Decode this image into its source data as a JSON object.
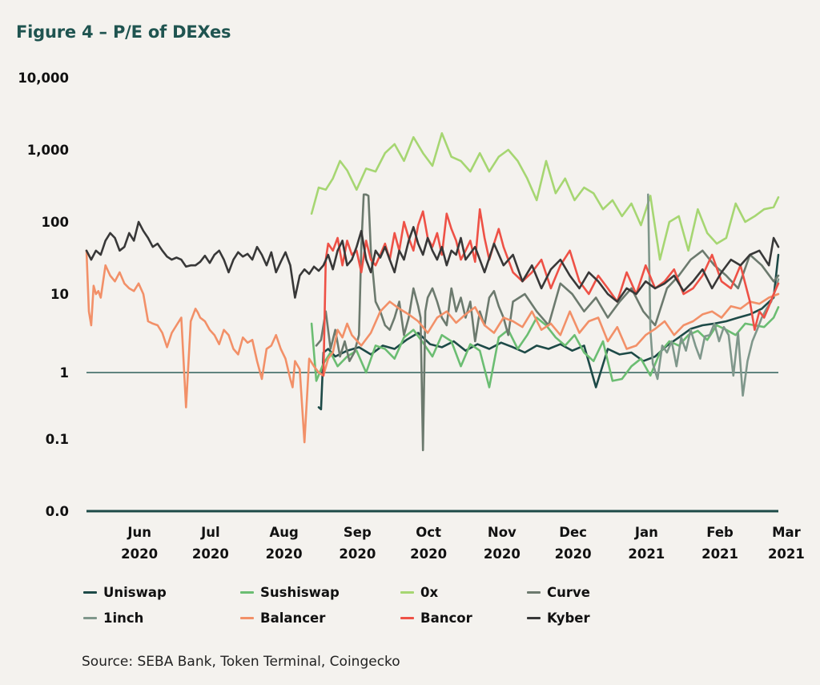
{
  "title": "Figure 4 – P/E of DEXes",
  "source": "Source: SEBA Bank, Token Terminal, Coingecko",
  "chart_data": {
    "type": "line",
    "title": "Figure 4 – P/E of DEXes",
    "xlabel": "",
    "ylabel": "",
    "yscale": "log",
    "ylim": [
      0.01,
      10000
    ],
    "y_ticks": [
      {
        "value": 10000,
        "label": "10,000"
      },
      {
        "value": 1000,
        "label": "1,000"
      },
      {
        "value": 100,
        "label": "100"
      },
      {
        "value": 10,
        "label": "10"
      },
      {
        "value": 1,
        "label": "1"
      },
      {
        "value": 0.1,
        "label": "0.1"
      },
      {
        "value": 0.01,
        "label": "0.0"
      }
    ],
    "x_ticks": [
      {
        "day": 21,
        "month": "Jun",
        "year": "2020"
      },
      {
        "day": 51,
        "month": "Jul",
        "year": "2020"
      },
      {
        "day": 82,
        "month": "Aug",
        "year": "2020"
      },
      {
        "day": 113,
        "month": "Sep",
        "year": "2020"
      },
      {
        "day": 143,
        "month": "Oct",
        "year": "2020"
      },
      {
        "day": 174,
        "month": "Nov",
        "year": "2020"
      },
      {
        "day": 204,
        "month": "Dec",
        "year": "2020"
      },
      {
        "day": 235,
        "month": "Jan",
        "year": "2021"
      },
      {
        "day": 266,
        "month": "Feb",
        "year": "2021"
      },
      {
        "day": 294,
        "month": "Mar",
        "year": "2021"
      }
    ],
    "x_unit": "days since 2020-05-25",
    "xlim": [
      0,
      292
    ],
    "reference_line": 1,
    "grid": false,
    "legend": "bottom",
    "series": [
      {
        "name": "Uniswap",
        "color": "#1d4a47",
        "x": [
          98,
          99,
          100,
          102,
          105,
          110,
          115,
          120,
          125,
          130,
          135,
          140,
          145,
          150,
          155,
          160,
          165,
          170,
          175,
          180,
          185,
          190,
          195,
          200,
          205,
          210,
          215,
          220,
          225,
          230,
          235,
          240,
          245,
          250,
          255,
          260,
          265,
          270,
          275,
          280,
          285,
          290,
          292
        ],
        "y": [
          0.3,
          0.28,
          1.8,
          2.0,
          1.6,
          1.9,
          2.1,
          1.7,
          2.2,
          2.0,
          2.6,
          3.2,
          2.3,
          2.1,
          2.5,
          1.9,
          2.3,
          2.0,
          2.4,
          2.1,
          1.8,
          2.2,
          2.0,
          2.3,
          1.9,
          2.2,
          0.6,
          2.0,
          1.7,
          1.8,
          1.4,
          1.6,
          2.2,
          2.8,
          3.6,
          4.0,
          4.2,
          4.5,
          5.0,
          5.5,
          6.5,
          9.0,
          35
        ]
      },
      {
        "name": "Sushiswap",
        "color": "#6bbd72",
        "x": [
          95,
          97,
          100,
          103,
          106,
          110,
          114,
          118,
          122,
          126,
          130,
          134,
          138,
          142,
          146,
          150,
          154,
          158,
          162,
          166,
          170,
          174,
          178,
          182,
          186,
          190,
          194,
          198,
          202,
          206,
          210,
          214,
          218,
          222,
          226,
          230,
          234,
          238,
          242,
          246,
          250,
          254,
          258,
          262,
          266,
          270,
          274,
          278,
          282,
          286,
          290,
          292
        ],
        "y": [
          4.2,
          0.75,
          1.3,
          1.8,
          1.2,
          1.6,
          1.9,
          1.0,
          2.2,
          2.0,
          1.5,
          2.8,
          3.5,
          2.4,
          1.6,
          3.0,
          2.5,
          1.2,
          2.3,
          1.9,
          0.6,
          2.8,
          3.5,
          2.0,
          3.0,
          5.0,
          4.0,
          2.8,
          2.2,
          3.0,
          1.8,
          1.4,
          2.5,
          0.75,
          0.8,
          1.2,
          1.5,
          0.9,
          1.8,
          2.5,
          2.2,
          3.0,
          3.4,
          2.6,
          4.0,
          3.5,
          3.0,
          4.2,
          4.0,
          3.8,
          5.0,
          6.8
        ]
      },
      {
        "name": "0x",
        "color": "#a6d672",
        "x": [
          95,
          98,
          101,
          104,
          107,
          110,
          114,
          118,
          122,
          126,
          130,
          134,
          138,
          142,
          146,
          150,
          154,
          158,
          162,
          166,
          170,
          174,
          178,
          182,
          186,
          190,
          194,
          198,
          202,
          206,
          210,
          214,
          218,
          222,
          226,
          230,
          234,
          238,
          242,
          246,
          250,
          254,
          258,
          262,
          266,
          270,
          274,
          278,
          282,
          286,
          290,
          292
        ],
        "y": [
          130,
          300,
          280,
          400,
          700,
          520,
          280,
          550,
          500,
          900,
          1200,
          700,
          1500,
          900,
          600,
          1700,
          800,
          700,
          500,
          900,
          500,
          800,
          1000,
          700,
          400,
          200,
          700,
          250,
          400,
          200,
          300,
          250,
          150,
          200,
          120,
          180,
          90,
          230,
          30,
          100,
          120,
          40,
          150,
          70,
          50,
          60,
          180,
          100,
          120,
          150,
          160,
          220
        ]
      },
      {
        "name": "Curve",
        "color": "#6c7a6e",
        "x": [
          97,
          99,
          101,
          103,
          105,
          107,
          109,
          111,
          113,
          115,
          116,
          117,
          118,
          119,
          120,
          122,
          124,
          126,
          128,
          130,
          132,
          134,
          136,
          138,
          140,
          141,
          142,
          143,
          144,
          146,
          148,
          150,
          152,
          154,
          156,
          158,
          160,
          162,
          164,
          166,
          168,
          170,
          172,
          174,
          176,
          178,
          180,
          185,
          190,
          195,
          200,
          205,
          210,
          215,
          220,
          225,
          230,
          235,
          240,
          245,
          250,
          255,
          260,
          265,
          270,
          275,
          280,
          285,
          290,
          292
        ],
        "y": [
          2.2,
          2.6,
          6.0,
          2.0,
          3.5,
          1.6,
          2.5,
          1.4,
          1.8,
          3.0,
          45,
          240,
          240,
          230,
          40,
          8,
          6,
          4,
          3.5,
          5,
          8,
          3,
          5,
          12,
          7,
          5,
          0.07,
          6,
          9,
          12,
          8,
          5,
          4,
          12,
          6,
          9,
          5,
          8,
          2.5,
          6,
          4,
          9,
          11,
          7,
          5,
          3,
          8,
          10,
          6,
          4,
          14,
          10,
          6,
          9,
          5,
          8,
          12,
          6,
          4,
          12,
          18,
          30,
          40,
          25,
          18,
          12,
          35,
          25,
          15,
          18
        ]
      },
      {
        "name": "1inch",
        "color": "#7f978b",
        "x": [
          237,
          238,
          239,
          241,
          243,
          245,
          247,
          249,
          251,
          253,
          255,
          257,
          259,
          261,
          263,
          265,
          267,
          269,
          271,
          273,
          275,
          277,
          279,
          281,
          283,
          285,
          287,
          289,
          291,
          292
        ],
        "y": [
          240,
          3.5,
          1.3,
          0.8,
          2.2,
          1.8,
          2.5,
          1.2,
          2.8,
          1.9,
          3.5,
          2.2,
          1.5,
          2.9,
          3.0,
          4.2,
          2.5,
          3.8,
          3.0,
          0.9,
          3.2,
          0.45,
          1.4,
          2.5,
          3.5,
          5.0,
          6.5,
          8.0,
          12,
          16
        ]
      },
      {
        "name": "Balancer",
        "color": "#f29068",
        "x": [
          0,
          1,
          2,
          3,
          4,
          5,
          6,
          8,
          10,
          12,
          14,
          16,
          18,
          20,
          22,
          24,
          26,
          28,
          30,
          32,
          34,
          36,
          38,
          40,
          42,
          44,
          46,
          47,
          48,
          50,
          52,
          54,
          56,
          58,
          60,
          62,
          64,
          66,
          68,
          70,
          72,
          74,
          76,
          78,
          80,
          82,
          84,
          86,
          87,
          88,
          90,
          92,
          94,
          96,
          98,
          100,
          102,
          104,
          106,
          108,
          110,
          112,
          116,
          120,
          124,
          128,
          132,
          136,
          140,
          144,
          148,
          152,
          156,
          160,
          164,
          168,
          172,
          176,
          180,
          184,
          188,
          192,
          196,
          200,
          204,
          208,
          212,
          216,
          220,
          224,
          228,
          232,
          236,
          240,
          244,
          248,
          252,
          256,
          260,
          264,
          268,
          272,
          276,
          280,
          284,
          288,
          292
        ],
        "y": [
          40,
          6,
          4,
          13,
          10,
          11,
          9,
          25,
          18,
          15,
          20,
          14,
          12,
          11,
          14,
          10,
          4.5,
          4.2,
          4.0,
          3.2,
          2.1,
          3.2,
          4.0,
          5.0,
          0.3,
          4.5,
          6.5,
          5.8,
          5.0,
          4.5,
          3.5,
          3.0,
          2.3,
          3.5,
          3.0,
          2.0,
          1.7,
          2.8,
          2.4,
          2.6,
          1.4,
          0.8,
          2.0,
          2.2,
          3.0,
          2.0,
          1.5,
          0.8,
          0.6,
          1.4,
          1.1,
          0.09,
          1.5,
          1.2,
          1.0,
          0.9,
          1.5,
          1.8,
          3.5,
          2.8,
          4.2,
          3.0,
          2.2,
          3.2,
          6.0,
          8.0,
          6.5,
          5.5,
          4.5,
          3.2,
          5.0,
          6.0,
          4.3,
          5.5,
          6.8,
          4.0,
          3.2,
          5.0,
          4.5,
          3.8,
          6.0,
          3.5,
          4.2,
          3.0,
          6.0,
          3.2,
          4.5,
          5.0,
          2.5,
          3.8,
          2.0,
          2.2,
          3.0,
          3.6,
          4.5,
          3.0,
          4.0,
          4.5,
          5.5,
          6.0,
          5.0,
          7.0,
          6.5,
          8.0,
          7.5,
          9.0,
          10
        ]
      },
      {
        "name": "Bancor",
        "color": "#ee5146",
        "x": [
          100,
          101,
          102,
          104,
          106,
          108,
          110,
          112,
          114,
          116,
          118,
          120,
          122,
          124,
          126,
          128,
          130,
          132,
          134,
          136,
          138,
          140,
          142,
          144,
          146,
          148,
          150,
          152,
          154,
          156,
          158,
          160,
          162,
          164,
          166,
          168,
          170,
          172,
          174,
          176,
          178,
          180,
          184,
          188,
          192,
          196,
          200,
          204,
          208,
          212,
          216,
          220,
          224,
          228,
          232,
          236,
          240,
          244,
          248,
          252,
          256,
          260,
          264,
          268,
          272,
          276,
          280,
          282,
          284,
          286,
          288,
          290,
          292
        ],
        "y": [
          0.9,
          30,
          50,
          40,
          60,
          25,
          55,
          35,
          40,
          20,
          55,
          30,
          25,
          35,
          50,
          30,
          70,
          40,
          100,
          60,
          40,
          90,
          140,
          60,
          45,
          70,
          35,
          130,
          80,
          55,
          30,
          40,
          55,
          28,
          150,
          60,
          30,
          50,
          80,
          45,
          30,
          20,
          15,
          20,
          30,
          12,
          25,
          40,
          15,
          10,
          18,
          12,
          8,
          20,
          10,
          25,
          12,
          15,
          22,
          10,
          12,
          18,
          35,
          15,
          12,
          25,
          8,
          3.5,
          6,
          5,
          7,
          10,
          14
        ]
      },
      {
        "name": "Kyber",
        "color": "#383838",
        "x": [
          0,
          2,
          4,
          6,
          8,
          10,
          12,
          14,
          16,
          18,
          20,
          22,
          24,
          26,
          28,
          30,
          32,
          34,
          36,
          38,
          40,
          42,
          44,
          46,
          48,
          50,
          52,
          54,
          56,
          58,
          60,
          62,
          64,
          66,
          68,
          70,
          72,
          74,
          76,
          78,
          80,
          82,
          84,
          86,
          88,
          90,
          92,
          94,
          96,
          98,
          100,
          102,
          104,
          106,
          108,
          110,
          112,
          114,
          116,
          118,
          120,
          122,
          124,
          126,
          128,
          130,
          132,
          134,
          136,
          138,
          140,
          142,
          144,
          146,
          148,
          150,
          152,
          154,
          156,
          158,
          160,
          164,
          168,
          172,
          176,
          180,
          184,
          188,
          192,
          196,
          200,
          204,
          208,
          212,
          216,
          220,
          224,
          228,
          232,
          236,
          240,
          244,
          248,
          252,
          256,
          260,
          264,
          268,
          272,
          276,
          280,
          284,
          288,
          290,
          292
        ],
        "y": [
          40,
          30,
          40,
          35,
          55,
          70,
          60,
          40,
          45,
          70,
          55,
          100,
          75,
          60,
          45,
          50,
          40,
          33,
          30,
          32,
          30,
          24,
          25,
          25,
          28,
          34,
          27,
          35,
          40,
          30,
          20,
          30,
          38,
          33,
          36,
          30,
          45,
          35,
          25,
          38,
          20,
          28,
          38,
          25,
          9,
          18,
          22,
          19,
          24,
          21,
          25,
          35,
          22,
          40,
          55,
          25,
          30,
          45,
          75,
          30,
          20,
          40,
          32,
          45,
          30,
          20,
          40,
          30,
          55,
          85,
          50,
          35,
          60,
          40,
          30,
          45,
          25,
          40,
          35,
          60,
          30,
          45,
          20,
          50,
          25,
          35,
          15,
          25,
          12,
          22,
          30,
          18,
          12,
          20,
          15,
          10,
          8,
          12,
          10,
          15,
          12,
          14,
          18,
          11,
          15,
          22,
          12,
          20,
          30,
          25,
          35,
          40,
          25,
          60,
          45
        ]
      }
    ]
  }
}
